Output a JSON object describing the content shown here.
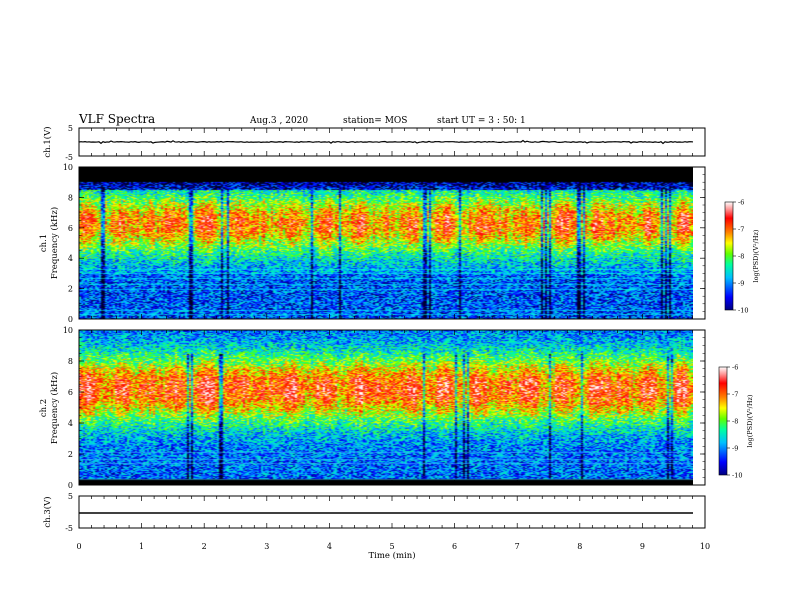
{
  "header": {
    "title": "VLF Spectra",
    "date": "Aug.3 , 2020",
    "station": "station= MOS",
    "start": "start UT = 3 : 50: 1"
  },
  "chart_data": [
    {
      "type": "line",
      "panel": "ch1-waveform",
      "ylabel": "ch.1(V)",
      "ylim": [
        -5,
        5
      ],
      "yticks": [
        "5",
        "-5"
      ],
      "xlim": [
        0,
        10
      ]
    },
    {
      "type": "heatmap",
      "panel": "ch1-spectrogram",
      "ylabel": "ch.1\nFrequency (kHz)",
      "ylim": [
        0,
        10
      ],
      "yticks": [
        "0",
        "2",
        "4",
        "6",
        "8",
        "10"
      ],
      "xlim": [
        0,
        10
      ],
      "colorbar": {
        "label": "log(PSD)(V²/Hz)",
        "range": [
          -10,
          -6
        ],
        "ticks": [
          "-6",
          "-7",
          "-8",
          "-9",
          "-10"
        ]
      }
    },
    {
      "type": "heatmap",
      "panel": "ch2-spectrogram",
      "ylabel": "ch.2\nFrequency (kHz)",
      "ylim": [
        0,
        10
      ],
      "yticks": [
        "0",
        "2",
        "4",
        "6",
        "8",
        "10"
      ],
      "xlim": [
        0,
        10
      ],
      "colorbar": {
        "label": "log(PSD)(V²/Hz)",
        "range": [
          -10,
          -6
        ],
        "ticks": [
          "-6",
          "-7",
          "-8",
          "-9",
          "-10"
        ]
      }
    },
    {
      "type": "line",
      "panel": "ch3-waveform",
      "ylabel": "ch.3(V)",
      "ylim": [
        -5,
        5
      ],
      "yticks": [
        "5",
        "-5"
      ],
      "xlim": [
        0,
        10
      ],
      "xlabel": "Time (min)",
      "xticks": [
        "0",
        "1",
        "2",
        "3",
        "4",
        "5",
        "6",
        "7",
        "8",
        "9",
        "10"
      ]
    }
  ],
  "colors": {
    "colormap": [
      "#000080",
      "#0000ff",
      "#00a0ff",
      "#00ffff",
      "#00ff60",
      "#80ff00",
      "#ffff00",
      "#ff8000",
      "#ff0000",
      "#ffffff"
    ],
    "trace": "#000000"
  }
}
